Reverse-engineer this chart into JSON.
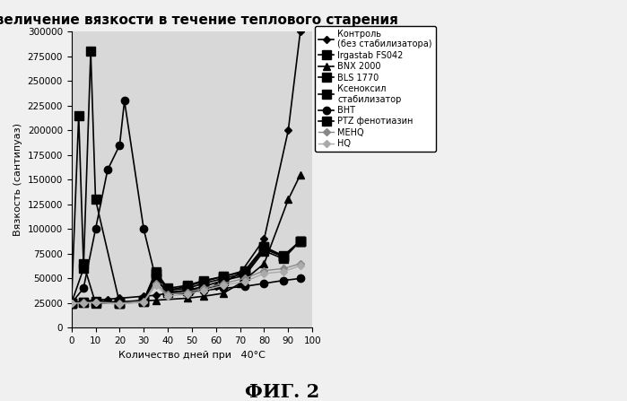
{
  "title": "Увеличение вязкости в течение теплового старения",
  "xlabel": "Количество дней при   40°C",
  "ylabel": "Вязкость (сантипуаз)",
  "caption": "ФИГ. 2",
  "xlim": [
    0,
    100
  ],
  "ylim": [
    0,
    300000
  ],
  "yticks": [
    0,
    25000,
    50000,
    75000,
    100000,
    125000,
    150000,
    175000,
    200000,
    225000,
    250000,
    275000,
    300000
  ],
  "xticks": [
    0,
    10,
    20,
    30,
    40,
    50,
    60,
    70,
    80,
    90,
    100
  ],
  "series": [
    {
      "label": "Контроль\n(без стабилизатора)",
      "color": "#000000",
      "marker": "D",
      "markersize": 4,
      "linewidth": 1.2,
      "linestyle": "-",
      "x": [
        0,
        5,
        10,
        15,
        20,
        30,
        35,
        40,
        50,
        60,
        70,
        80,
        90,
        95
      ],
      "y": [
        25000,
        27000,
        28000,
        29000,
        30000,
        32000,
        33000,
        35000,
        38000,
        42000,
        55000,
        90000,
        200000,
        300000
      ]
    },
    {
      "label": "Irgastab FS042",
      "color": "#000000",
      "marker": "s",
      "markersize": 7,
      "linewidth": 1.2,
      "linestyle": "-",
      "x": [
        0,
        5,
        8,
        10,
        20,
        30,
        35,
        40,
        48,
        55,
        63,
        72,
        80,
        88,
        95
      ],
      "y": [
        25000,
        60000,
        280000,
        130000,
        25000,
        28000,
        57000,
        40000,
        43000,
        48000,
        52000,
        58000,
        82000,
        72000,
        88000
      ]
    },
    {
      "label": "BNX 2000",
      "color": "#000000",
      "marker": "^",
      "markersize": 6,
      "linewidth": 1.2,
      "linestyle": "-",
      "x": [
        0,
        5,
        10,
        20,
        35,
        48,
        55,
        63,
        70,
        80,
        90,
        95
      ],
      "y": [
        25000,
        26000,
        27000,
        26000,
        28000,
        30000,
        32000,
        35000,
        45000,
        65000,
        130000,
        155000
      ]
    },
    {
      "label": "BLS 1770",
      "color": "#000000",
      "marker": "s",
      "markersize": 7,
      "linewidth": 1.2,
      "linestyle": "-",
      "x": [
        0,
        5,
        10,
        20,
        30,
        35,
        40,
        48,
        55,
        63,
        72,
        80,
        88,
        95
      ],
      "y": [
        25000,
        26000,
        27000,
        26000,
        28000,
        55000,
        38000,
        40000,
        45000,
        50000,
        55000,
        80000,
        72000,
        88000
      ]
    },
    {
      "label": "Ксеноксил\nстабилизатор",
      "color": "#000000",
      "marker": "s",
      "markersize": 7,
      "linewidth": 1.2,
      "linestyle": "-",
      "x": [
        0,
        3,
        5,
        10,
        20,
        30,
        35,
        40,
        48,
        55,
        63,
        72,
        80,
        88,
        95
      ],
      "y": [
        25000,
        215000,
        65000,
        25000,
        25000,
        27000,
        55000,
        38000,
        42000,
        47000,
        52000,
        57000,
        82000,
        73000,
        88000
      ]
    },
    {
      "label": "BHT",
      "color": "#000000",
      "marker": "o",
      "markersize": 6,
      "linewidth": 1.2,
      "linestyle": "-",
      "x": [
        0,
        5,
        10,
        15,
        20,
        22,
        30,
        35,
        40,
        48,
        55,
        63,
        72,
        80,
        88,
        95
      ],
      "y": [
        25000,
        40000,
        100000,
        160000,
        185000,
        230000,
        100000,
        50000,
        35000,
        35000,
        38000,
        40000,
        42000,
        45000,
        48000,
        50000
      ]
    },
    {
      "label": "PTZ фенотиазин",
      "color": "#000000",
      "marker": "s",
      "markersize": 7,
      "linewidth": 1.2,
      "linestyle": "-",
      "x": [
        0,
        5,
        10,
        20,
        30,
        35,
        40,
        48,
        55,
        63,
        72,
        80,
        88,
        95
      ],
      "y": [
        25000,
        26000,
        26000,
        25000,
        27000,
        50000,
        36000,
        38000,
        42000,
        48000,
        53000,
        78000,
        70000,
        88000
      ]
    },
    {
      "label": "MEHQ",
      "color": "#888888",
      "marker": "D",
      "markersize": 4,
      "linewidth": 1.0,
      "linestyle": "-",
      "x": [
        0,
        5,
        10,
        20,
        30,
        35,
        40,
        48,
        55,
        63,
        72,
        80,
        88,
        95
      ],
      "y": [
        25000,
        25500,
        26000,
        25000,
        27000,
        45000,
        34000,
        36000,
        40000,
        45000,
        50000,
        58000,
        60000,
        65000
      ]
    },
    {
      "label": "HQ",
      "color": "#aaaaaa",
      "marker": "D",
      "markersize": 4,
      "linewidth": 1.0,
      "linestyle": "-",
      "x": [
        0,
        5,
        10,
        20,
        30,
        35,
        40,
        48,
        55,
        63,
        72,
        80,
        88,
        95
      ],
      "y": [
        25000,
        25000,
        25500,
        24000,
        26000,
        43000,
        32000,
        34000,
        38000,
        43000,
        47000,
        55000,
        57000,
        63000
      ]
    }
  ],
  "background_color": "#f0f0f0",
  "plot_bg_color": "#d8d8d8",
  "legend_bg": "#ffffff"
}
